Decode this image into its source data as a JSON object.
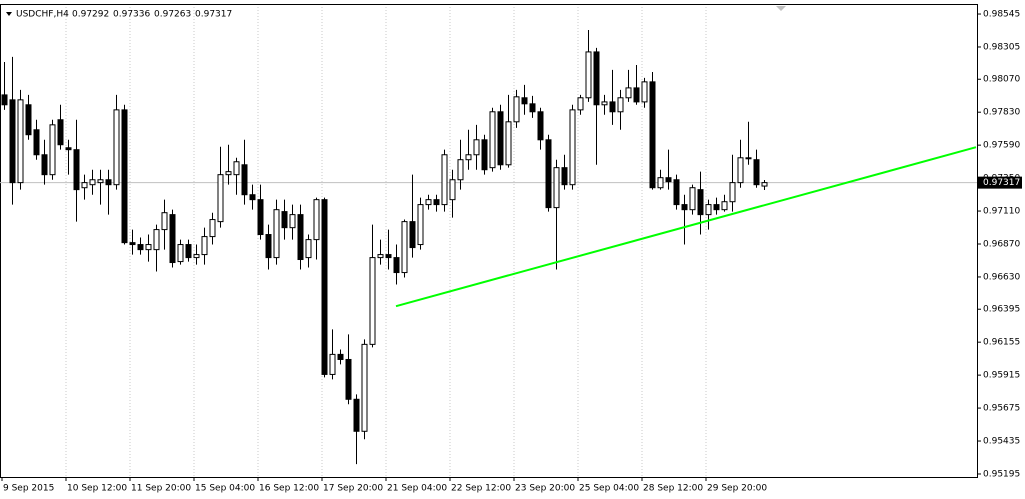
{
  "chart_data": {
    "type": "candlestick",
    "symbol": "USDCHF,H4",
    "last_bar": [
      0.97292,
      0.97336,
      0.97263,
      0.97317
    ],
    "current_price": 0.97317,
    "categories": [
      "9 Sep 2015",
      null,
      null,
      null,
      null,
      null,
      null,
      null,
      "10 Sep 12:00",
      null,
      null,
      null,
      null,
      null,
      null,
      null,
      "11 Sep 20:00",
      null,
      null,
      null,
      null,
      null,
      null,
      null,
      "15 Sep 04:00",
      null,
      null,
      null,
      null,
      null,
      null,
      null,
      "16 Sep 12:00",
      null,
      null,
      null,
      null,
      null,
      null,
      null,
      "17 Sep 20:00",
      null,
      null,
      null,
      null,
      null,
      null,
      null,
      "21 Sep 04:00",
      null,
      null,
      null,
      null,
      null,
      null,
      null,
      "22 Sep 12:00",
      null,
      null,
      null,
      null,
      null,
      null,
      null,
      "23 Sep 20:00",
      null,
      null,
      null,
      null,
      null,
      null,
      null,
      "25 Sep 04:00",
      null,
      null,
      null,
      null,
      null,
      null,
      null,
      "28 Sep 12:00",
      null,
      null,
      null,
      null,
      null,
      null,
      null,
      "29 Sep 20:00",
      null,
      null,
      null,
      null,
      null,
      null,
      null
    ],
    "open": [
      0.97956,
      0.9792,
      0.97317,
      0.97884,
      0.97702,
      0.9752,
      0.97375,
      0.97775,
      0.97571,
      0.97557,
      0.9728,
      0.97302,
      0.97317,
      0.97338,
      0.97302,
      0.97847,
      0.9688,
      0.96866,
      0.96829,
      0.96829,
      0.96975,
      0.97084,
      0.96742,
      0.96866,
      0.96771,
      0.96793,
      0.96924,
      0.97033,
      0.97375,
      0.97375,
      0.97447,
      0.97229,
      0.97193,
      0.96939,
      0.96771,
      0.97106,
      0.96989,
      0.97084,
      0.96771,
      0.96902,
      0.97193,
      0.9592,
      0.96066,
      0.96029,
      0.95739,
      0.95506,
      0.96139,
      0.96771,
      0.96793,
      0.96771,
      0.96662,
      0.97033,
      0.96866,
      0.97157,
      0.97193,
      0.97157,
      0.97193,
      0.97338,
      0.97484,
      0.9752,
      0.97629,
      0.97426,
      0.97833,
      0.97447,
      0.9776,
      0.97935,
      0.97891,
      0.97833,
      0.97629,
      0.97135,
      0.97426,
      0.97302,
      0.97847,
      0.97935,
      0.98269,
      0.97884,
      0.97905,
      0.97833,
      0.97935,
      0.98007,
      0.97905,
      0.98051,
      0.9728,
      0.97353,
      0.97338,
      0.97157,
      0.9712,
      0.97266,
      0.97084,
      0.97157,
      0.9712,
      0.97178,
      0.97317,
      0.97498,
      0.97484,
      0.97292
    ],
    "high": [
      0.98196,
      0.98233,
      0.97993,
      0.97956,
      0.97775,
      0.97629,
      0.97775,
      0.97884,
      0.97629,
      0.97775,
      0.97375,
      0.97411,
      0.97411,
      0.97411,
      0.97956,
      0.97884,
      0.96975,
      0.96917,
      0.96939,
      0.97011,
      0.97193,
      0.9712,
      0.96902,
      0.96902,
      0.96866,
      0.96989,
      0.97098,
      0.97578,
      0.97593,
      0.97498,
      0.97629,
      0.97302,
      0.97302,
      0.97011,
      0.97193,
      0.97193,
      0.97157,
      0.97157,
      0.96939,
      0.97208,
      0.97208,
      0.96248,
      0.96102,
      0.96212,
      0.95775,
      0.96175,
      0.97011,
      0.96902,
      0.96975,
      0.96866,
      0.97048,
      0.97375,
      0.97208,
      0.97229,
      0.97229,
      0.97557,
      0.97411,
      0.97629,
      0.97702,
      0.97738,
      0.97666,
      0.97862,
      0.97884,
      0.97956,
      0.97993,
      0.98029,
      0.97949,
      0.97862,
      0.97666,
      0.97484,
      0.9752,
      0.97884,
      0.97956,
      0.98429,
      0.98298,
      0.97956,
      0.98138,
      0.97993,
      0.98138,
      0.98174,
      0.9808,
      0.98123,
      0.97411,
      0.97557,
      0.97375,
      0.97229,
      0.97302,
      0.97397,
      0.97193,
      0.97208,
      0.97229,
      0.9752,
      0.97629,
      0.9776,
      0.97557,
      0.97336
    ],
    "low": [
      0.97847,
      0.97157,
      0.97266,
      0.97629,
      0.97484,
      0.97302,
      0.97338,
      0.97557,
      0.97375,
      0.97033,
      0.97193,
      0.97229,
      0.97157,
      0.97084,
      0.97266,
      0.96866,
      0.96793,
      0.96793,
      0.96742,
      0.9667,
      0.96829,
      0.96699,
      0.9672,
      0.96742,
      0.9672,
      0.9672,
      0.96866,
      0.96989,
      0.97302,
      0.97229,
      0.97157,
      0.9712,
      0.96902,
      0.96684,
      0.9672,
      0.96902,
      0.96902,
      0.96684,
      0.96699,
      0.96757,
      0.95899,
      0.95884,
      0.95993,
      0.95703,
      0.95267,
      0.95448,
      0.96117,
      0.9672,
      0.96684,
      0.96575,
      0.96626,
      0.96771,
      0.96829,
      0.9712,
      0.97106,
      0.97106,
      0.97062,
      0.97266,
      0.97411,
      0.97411,
      0.97375,
      0.97397,
      0.97411,
      0.97426,
      0.97716,
      0.97811,
      0.97789,
      0.97557,
      0.97106,
      0.96684,
      0.97266,
      0.97266,
      0.97811,
      0.97905,
      0.97447,
      0.97811,
      0.97738,
      0.97702,
      0.97905,
      0.97884,
      0.97862,
      0.97266,
      0.97266,
      0.97266,
      0.9712,
      0.96866,
      0.97084,
      0.96939,
      0.96975,
      0.97084,
      0.97106,
      0.97106,
      0.9728,
      0.97447,
      0.9728,
      0.97263
    ],
    "close": [
      0.97884,
      0.97317,
      0.9792,
      0.97666,
      0.9752,
      0.97375,
      0.97738,
      0.97593,
      0.97557,
      0.97266,
      0.97317,
      0.97338,
      0.97338,
      0.97302,
      0.97847,
      0.9688,
      0.96866,
      0.96829,
      0.96866,
      0.96975,
      0.97098,
      0.96735,
      0.96866,
      0.96771,
      0.96793,
      0.96924,
      0.97048,
      0.97375,
      0.97397,
      0.97469,
      0.97229,
      0.97193,
      0.96939,
      0.96771,
      0.9712,
      0.96989,
      0.97084,
      0.96757,
      0.96902,
      0.97193,
      0.9592,
      0.96066,
      0.96029,
      0.95739,
      0.95506,
      0.96139,
      0.96771,
      0.96793,
      0.96771,
      0.96662,
      0.97033,
      0.96844,
      0.97157,
      0.97193,
      0.97157,
      0.9752,
      0.97338,
      0.97484,
      0.9752,
      0.97629,
      0.97411,
      0.97833,
      0.97447,
      0.9776,
      0.97942,
      0.97891,
      0.97833,
      0.97629,
      0.97135,
      0.97426,
      0.97302,
      0.97847,
      0.97935,
      0.98269,
      0.97884,
      0.97905,
      0.97833,
      0.97935,
      0.98007,
      0.97905,
      0.98051,
      0.9728,
      0.97353,
      0.97324,
      0.97157,
      0.9712,
      0.9728,
      0.97084,
      0.97157,
      0.9712,
      0.97178,
      0.97317,
      0.97498,
      0.97498,
      0.97302,
      0.97317
    ],
    "ylim": [
      0.98618,
      0.95173
    ],
    "yticks": [
      0.98545,
      0.98305,
      {
        "value": 0.9807,
        "label": "0.98070"
      },
      {
        "value": 0.9783,
        "label": "0.97830"
      },
      {
        "value": 0.9759,
        "label": "0.97590"
      },
      {
        "value": 0.9735,
        "label": "0.97350"
      },
      {
        "value": 0.9711,
        "label": "0.97110"
      },
      {
        "value": 0.9687,
        "label": "0.96870"
      },
      {
        "value": 0.9663,
        "label": "0.96630"
      },
      0.96395,
      0.96155,
      0.95915,
      0.95675,
      0.95435,
      0.95195
    ],
    "trendline": {
      "x": [
        49,
        121.5
      ],
      "y": [
        0.96417,
        0.97575
      ],
      "color": "#00ff00"
    },
    "up_color": "#ffffff",
    "down_color": "#000000",
    "grid": true
  }
}
